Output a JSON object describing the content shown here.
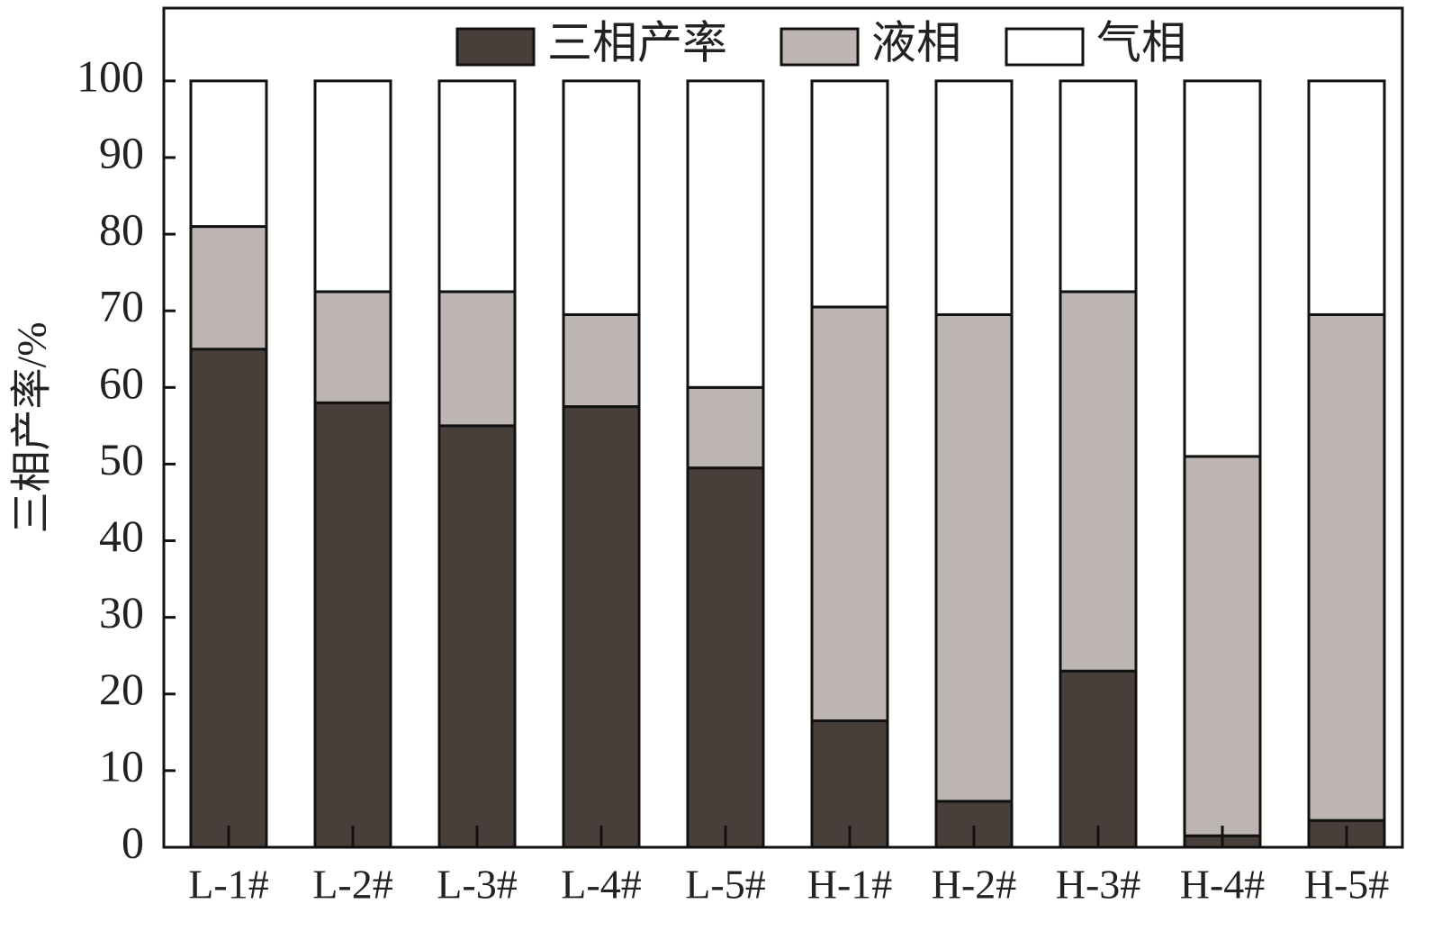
{
  "chart_data": {
    "type": "stacked_bar",
    "y_label": "三相产率/%",
    "categories": [
      "L-1#",
      "L-2#",
      "L-3#",
      "L-4#",
      "L-5#",
      "H-1#",
      "H-2#",
      "H-3#",
      "H-4#",
      "H-5#"
    ],
    "series": [
      {
        "name": "三相产率",
        "color": "#483f3b",
        "values": [
          65,
          58,
          55,
          57.5,
          49.5,
          16.5,
          6,
          23,
          1.5,
          3.5
        ]
      },
      {
        "name": "液相",
        "color": "#bdb5b1",
        "values": [
          16,
          14.5,
          17.5,
          12,
          10.5,
          54,
          63.5,
          49.5,
          49.5,
          66
        ]
      },
      {
        "name": "气相",
        "color": "#ffffff",
        "values": [
          19,
          27.5,
          27.5,
          30.5,
          40,
          29.5,
          30.5,
          27.5,
          49,
          30.5
        ]
      }
    ],
    "ylim": [
      0,
      109.5
    ],
    "yticks": [
      0,
      10,
      20,
      30,
      40,
      50,
      60,
      70,
      80,
      90,
      100
    ]
  }
}
